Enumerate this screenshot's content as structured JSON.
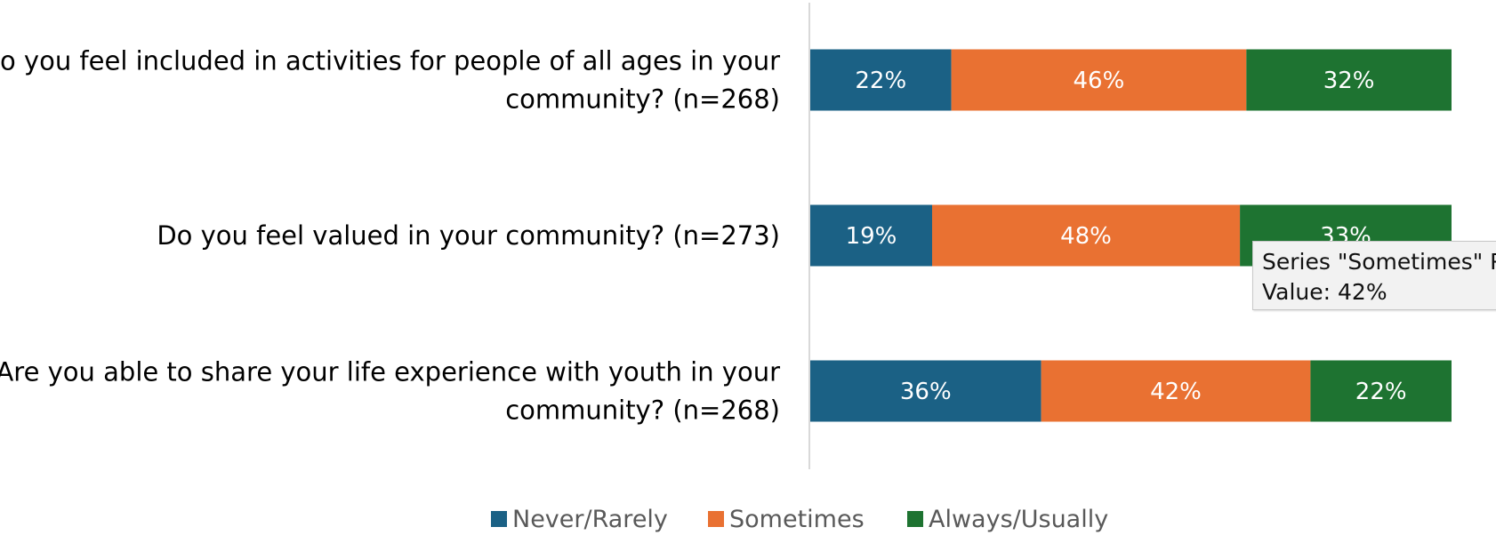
{
  "chart_data": {
    "type": "bar",
    "orientation": "horizontal",
    "stacked": true,
    "categories": [
      [
        "Do you feel included in activities for people of all ages in your",
        "community? (n=268)"
      ],
      [
        "Do you feel valued in your community? (n=273)"
      ],
      [
        "Are you able to share your life experience with youth in your",
        "community? (n=268)"
      ]
    ],
    "series": [
      {
        "name": "Never/Rarely",
        "color": "#1b6185",
        "values": [
          22,
          19,
          36
        ],
        "labels": [
          "22%",
          "19%",
          "36%"
        ]
      },
      {
        "name": "Sometimes",
        "color": "#e97132",
        "values": [
          46,
          48,
          42
        ],
        "labels": [
          "46%",
          "48%",
          "42%"
        ]
      },
      {
        "name": "Always/Usually",
        "color": "#1e7331",
        "values": [
          32,
          33,
          22
        ],
        "labels": [
          "32%",
          "33%",
          "22%"
        ]
      }
    ],
    "xlim": [
      0,
      100
    ],
    "grid": false,
    "legend_position": "bottom",
    "value_suffix": "%"
  },
  "tooltip": {
    "line1": "Series \"Sometimes\" P",
    "line2": "Value: 42%"
  }
}
